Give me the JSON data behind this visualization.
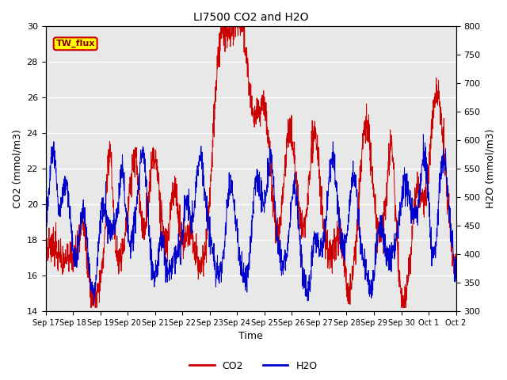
{
  "title": "LI7500 CO2 and H2O",
  "xlabel": "Time",
  "ylabel_left": "CO2 (mmol/m3)",
  "ylabel_right": "H2O (mmol/m3)",
  "co2_ylim": [
    14,
    30
  ],
  "h2o_ylim": [
    300,
    800
  ],
  "co2_yticks": [
    14,
    16,
    18,
    20,
    22,
    24,
    26,
    28,
    30
  ],
  "h2o_yticks": [
    300,
    350,
    400,
    450,
    500,
    550,
    600,
    650,
    700,
    750,
    800
  ],
  "plot_bg_color": "#e8e8e8",
  "co2_color": "#cc0000",
  "h2o_color": "#0000cc",
  "annotation_text": "TW_flux",
  "annotation_bg": "#ffff00",
  "annotation_border": "#cc0000",
  "date_labels": [
    "Sep 17",
    "Sep 18",
    "Sep 19",
    "Sep 20",
    "Sep 21",
    "Sep 22",
    "Sep 23",
    "Sep 24",
    "Sep 25",
    "Sep 26",
    "Sep 27",
    "Sep 28",
    "Sep 29",
    "Sep 30",
    "Oct 1",
    "Oct 2"
  ]
}
